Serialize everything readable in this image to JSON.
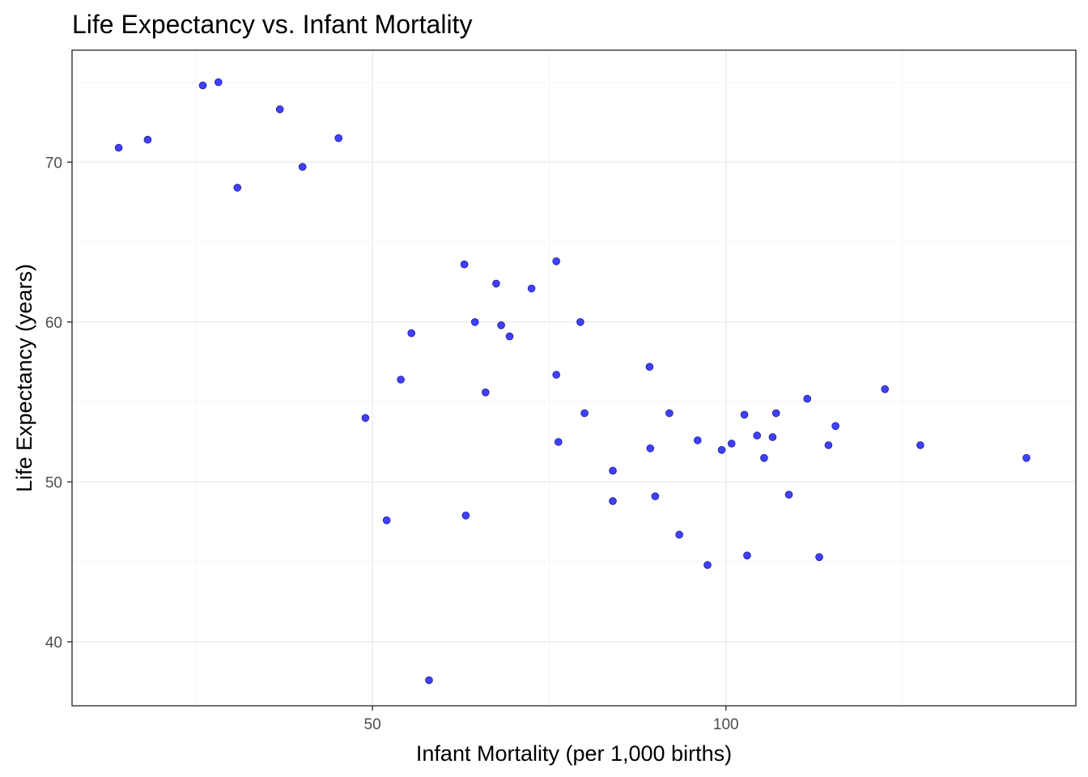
{
  "chart_data": {
    "type": "scatter",
    "title": "Life Expectancy vs. Infant Mortality",
    "xlabel": "Infant Mortality (per 1,000 births)",
    "ylabel": "Life Expectancy (years)",
    "xlim": [
      7.5,
      149.5
    ],
    "ylim": [
      36,
      77
    ],
    "x_ticks": [
      50,
      100
    ],
    "x_tick_labels": [
      "50",
      "100"
    ],
    "x_minor_ticks": [
      25,
      75,
      125
    ],
    "y_ticks": [
      40,
      50,
      60,
      70
    ],
    "y_tick_labels": [
      "40",
      "50",
      "60",
      "70"
    ],
    "y_minor_ticks": [
      45,
      55,
      65,
      75
    ],
    "grid": true,
    "point_fill": "#4040ff",
    "point_stroke": "#1a1a99",
    "series": [
      {
        "x": [
          14.1,
          18.2,
          26.0,
          28.2,
          30.9,
          36.9,
          40.1,
          45.2,
          49.0,
          52.0,
          54.0,
          55.5,
          58.0,
          63.0,
          63.2,
          64.5,
          66.0,
          67.5,
          68.2,
          69.4,
          72.5,
          76.0,
          76.0,
          76.3,
          79.4,
          80.0,
          84.0,
          84.0,
          89.2,
          89.3,
          90.0,
          92.0,
          93.4,
          96.0,
          97.4,
          99.4,
          100.8,
          102.6,
          103.0,
          104.4,
          105.4,
          106.6,
          107.1,
          108.9,
          111.5,
          113.2,
          114.5,
          115.5,
          122.5,
          127.5,
          142.5
        ],
        "y": [
          70.9,
          71.4,
          74.8,
          75.0,
          68.4,
          73.3,
          69.7,
          71.5,
          54.0,
          47.6,
          56.4,
          59.3,
          37.6,
          63.6,
          47.9,
          60.0,
          55.6,
          62.4,
          59.8,
          59.1,
          62.1,
          63.8,
          56.7,
          52.5,
          60.0,
          54.3,
          50.7,
          48.8,
          57.2,
          52.1,
          49.1,
          54.3,
          46.7,
          52.6,
          44.8,
          52.0,
          52.4,
          54.2,
          45.4,
          52.9,
          51.5,
          52.8,
          54.3,
          49.2,
          55.2,
          45.3,
          52.3,
          53.5,
          55.8,
          52.3,
          51.5
        ]
      }
    ]
  }
}
